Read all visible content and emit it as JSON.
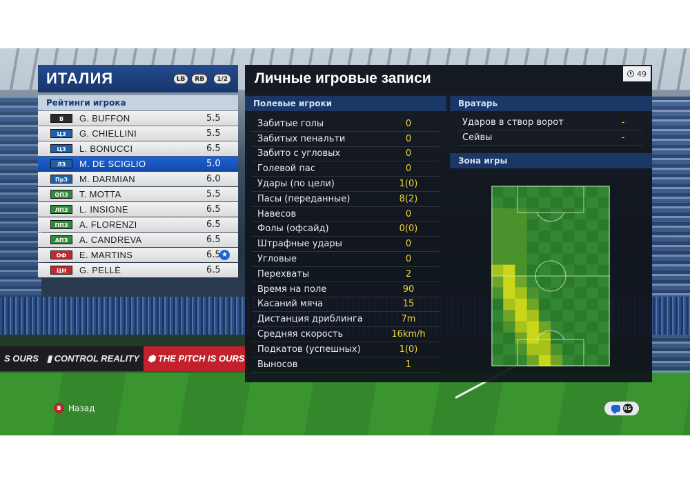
{
  "team": {
    "name": "ИТАЛИЯ",
    "lb_label": "LB",
    "rb_label": "RB",
    "page": "1/2"
  },
  "ratings": {
    "title": "Рейтинги игрока",
    "players": [
      {
        "pos": "В",
        "pos_color": "#2b2b2b",
        "name": "G. BUFFON",
        "rating": "5.5",
        "selected": false,
        "star": false
      },
      {
        "pos": "ЦЗ",
        "pos_color": "#1f5fa8",
        "name": "G. CHIELLINI",
        "rating": "5.5",
        "selected": false,
        "star": false
      },
      {
        "pos": "ЦЗ",
        "pos_color": "#1f5fa8",
        "name": "L. BONUCCI",
        "rating": "6.5",
        "selected": false,
        "star": false
      },
      {
        "pos": "ЛЗ",
        "pos_color": "#1f5fa8",
        "name": "M. DE SCIGLIO",
        "rating": "5.0",
        "selected": true,
        "star": false
      },
      {
        "pos": "ПрЗ",
        "pos_color": "#1f5fa8",
        "name": "M. DARMIAN",
        "rating": "6.0",
        "selected": false,
        "star": false
      },
      {
        "pos": "ОПЗ",
        "pos_color": "#2f8a3a",
        "name": "T. MOTTA",
        "rating": "5.5",
        "selected": false,
        "star": false
      },
      {
        "pos": "ЛПЗ",
        "pos_color": "#2f8a3a",
        "name": "L. INSIGNE",
        "rating": "6.5",
        "selected": false,
        "star": false
      },
      {
        "pos": "ППЗ",
        "pos_color": "#2f8a3a",
        "name": "A. FLORENZI",
        "rating": "6.5",
        "selected": false,
        "star": false
      },
      {
        "pos": "АПЗ",
        "pos_color": "#2f8a3a",
        "name": "A. CANDREVA",
        "rating": "6.5",
        "selected": false,
        "star": false
      },
      {
        "pos": "ОФ",
        "pos_color": "#c0282e",
        "name": "E. MARTINS",
        "rating": "6.5",
        "selected": false,
        "star": true
      },
      {
        "pos": "ЦН",
        "pos_color": "#c0282e",
        "name": "G. PELLÈ",
        "rating": "6.5",
        "selected": false,
        "star": false
      }
    ]
  },
  "records": {
    "title": "Личные игровые записи",
    "timer": "49",
    "field_players_heading": "Полевые игроки",
    "stats": [
      {
        "label": "Забитые голы",
        "value": "0"
      },
      {
        "label": "Забитых пенальти",
        "value": "0"
      },
      {
        "label": "Забито с угловых",
        "value": "0"
      },
      {
        "label": "Голевой пас",
        "value": "0"
      },
      {
        "label": "Удары (по цели)",
        "value": "1(0)"
      },
      {
        "label": "Пасы (переданные)",
        "value": "8(2)"
      },
      {
        "label": "Навесов",
        "value": "0"
      },
      {
        "label": "Фолы (офсайд)",
        "value": "0(0)"
      },
      {
        "label": "Штрафные удары",
        "value": "0"
      },
      {
        "label": "Угловые",
        "value": "0"
      },
      {
        "label": "Перехваты",
        "value": "2"
      },
      {
        "label": "Время на поле",
        "value": "90"
      },
      {
        "label": "Касаний мяча",
        "value": "15"
      },
      {
        "label": "Дистанция дриблинга",
        "value": "7m"
      },
      {
        "label": "Средняя скорость",
        "value": "16km/h"
      },
      {
        "label": "Подкатов (успешных)",
        "value": "1(0)"
      },
      {
        "label": "Выносов",
        "value": "1"
      }
    ],
    "goalkeeper_heading": "Вратарь",
    "gk_stats": [
      {
        "label": "Ударов в створ ворот",
        "value": "-"
      },
      {
        "label": "Сейвы",
        "value": "-"
      }
    ],
    "zone_heading": "Зона игры"
  },
  "footer": {
    "back_button_glyph": "B",
    "back_label": "Назад",
    "rs_glyph": "RS"
  },
  "icons": {
    "timer": "clock-icon",
    "back": "b-button-icon",
    "chat": "chat-icon",
    "star": "star-icon"
  },
  "colors": {
    "team_header": "#1f4586",
    "selected_row": "#1e63d6",
    "stat_value": "#f2d43a",
    "section_head": "#1b3766"
  }
}
